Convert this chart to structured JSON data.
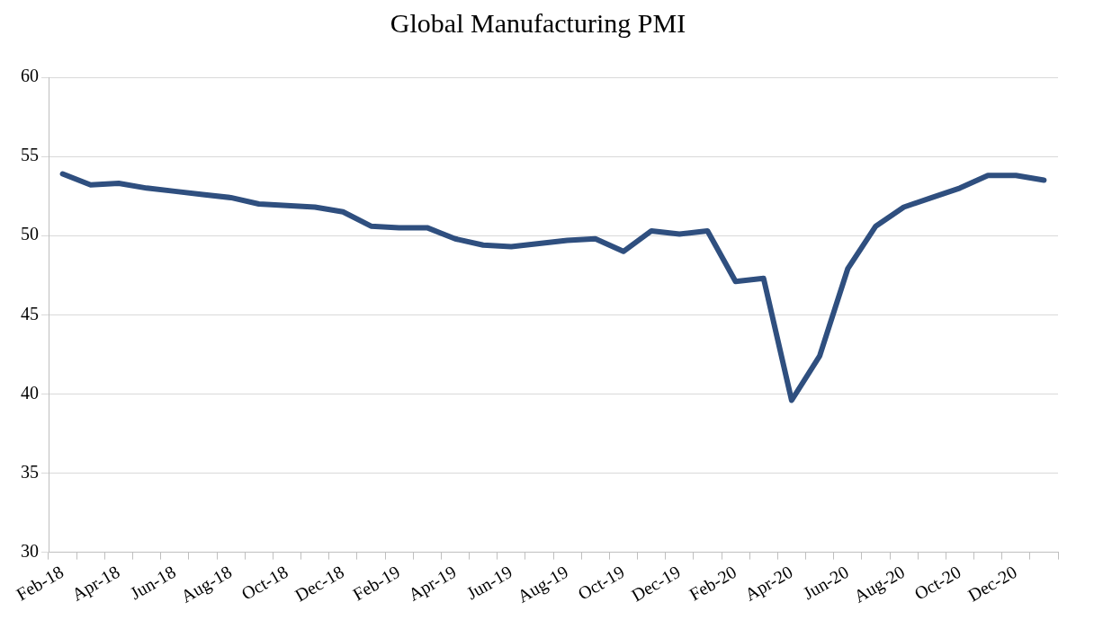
{
  "chart_data": {
    "type": "line",
    "title": "Global Manufacturing PMI",
    "categories": [
      "Feb-18",
      null,
      "Apr-18",
      null,
      "Jun-18",
      null,
      "Aug-18",
      null,
      "Oct-18",
      null,
      "Dec-18",
      null,
      "Feb-19",
      null,
      "Apr-19",
      null,
      "Jun-19",
      null,
      "Aug-19",
      null,
      "Oct-19",
      null,
      "Dec-19",
      null,
      "Feb-20",
      null,
      "Apr-20",
      null,
      "Jun-20",
      null,
      "Aug-20",
      null,
      "Oct-20",
      null,
      "Dec-20",
      null
    ],
    "series": [
      {
        "color": "#2f4f7f",
        "values": [
          53.9,
          53.2,
          53.3,
          53.0,
          52.8,
          52.6,
          52.4,
          52.0,
          51.9,
          51.8,
          51.5,
          50.6,
          50.5,
          50.5,
          49.8,
          49.4,
          49.3,
          49.5,
          49.7,
          49.8,
          49.0,
          50.3,
          50.1,
          50.3,
          47.1,
          47.3,
          39.6,
          42.4,
          47.9,
          50.6,
          51.8,
          52.4,
          53.0,
          53.8,
          53.8,
          53.5
        ]
      }
    ],
    "ylim": [
      30,
      60
    ],
    "yticks": [
      30,
      35,
      40,
      45,
      50,
      55,
      60
    ],
    "grid": "y",
    "legend": false,
    "marker": "none",
    "line_style": "solid"
  }
}
